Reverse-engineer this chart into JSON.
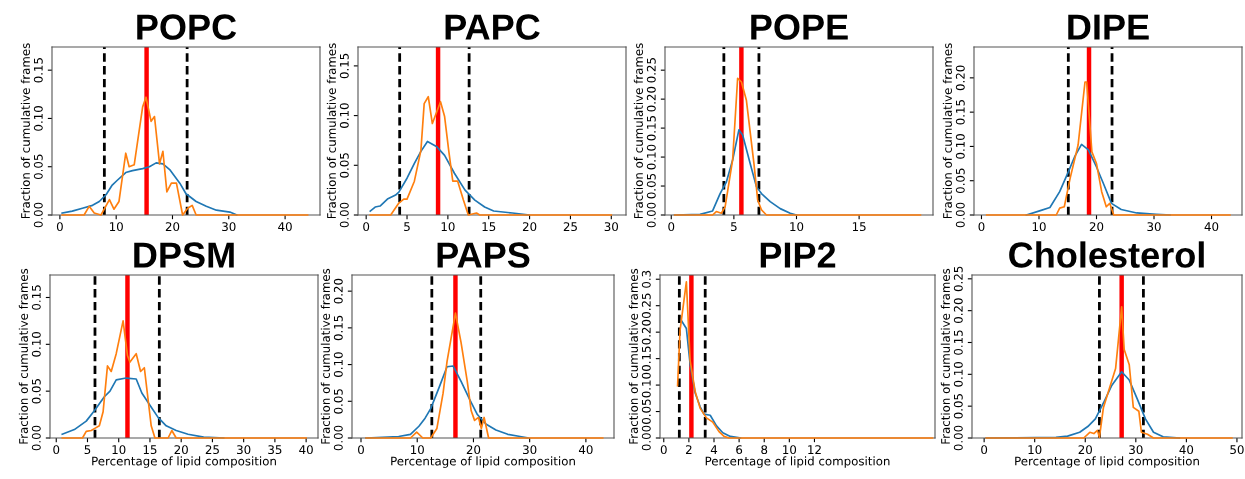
{
  "chart_data": [
    {
      "type": "line",
      "title": "POPC",
      "ylabel": "Fraction of cumulative frames",
      "xlim": [
        -1.4,
        46.2
      ],
      "ylim": [
        0,
        0.174
      ],
      "xticks": [
        0,
        10,
        20,
        30,
        40
      ],
      "yticks": [
        {
          "value": 0,
          "label": "0.00"
        },
        {
          "value": 0.05,
          "label": "0.05"
        },
        {
          "value": 0.1,
          "label": "0.10"
        },
        {
          "value": 0.15,
          "label": "0.15"
        }
      ],
      "series": [
        {
          "color": "#1f77b4",
          "x": [
            0.4,
            2.2,
            4,
            5.8,
            7,
            8.2,
            9.3,
            10.2,
            11.7,
            12.9,
            14.7,
            15.9,
            17.1,
            18.3,
            19.5,
            21.3,
            22.4,
            24.2,
            26,
            27.8,
            30.2,
            31.4
          ],
          "values": [
            0.002,
            0.004,
            0.007,
            0.01,
            0.014,
            0.021,
            0.031,
            0.036,
            0.044,
            0.046,
            0.048,
            0.05,
            0.054,
            0.053,
            0.047,
            0.033,
            0.022,
            0.014,
            0.009,
            0.005,
            0.003,
            0
          ]
        },
        {
          "color": "#ff7f0e",
          "x": [
            0.4,
            4.3,
            5.2,
            6.1,
            7.3,
            8.8,
            9.6,
            10.5,
            11.7,
            12.3,
            13.2,
            14.7,
            15.3,
            16.2,
            16.8,
            17.7,
            18.3,
            19,
            19.8,
            20.7,
            21.8,
            22.7,
            23.5,
            24.2,
            44
          ],
          "values": [
            0,
            0,
            0.009,
            0.002,
            0,
            0.016,
            0.006,
            0.014,
            0.064,
            0.05,
            0.052,
            0.112,
            0.122,
            0.097,
            0.102,
            0.053,
            0.066,
            0.024,
            0.033,
            0.033,
            0,
            0.007,
            0.01,
            0,
            0
          ]
        }
      ],
      "ref_lines": [
        {
          "axis": "x",
          "value": 7.9,
          "color": "#000000",
          "line_style": "dashed"
        },
        {
          "axis": "x",
          "value": 22.6,
          "color": "#000000",
          "line_style": "dashed"
        },
        {
          "axis": "x",
          "value": 15.4,
          "color": "#ff0000",
          "line_style": "solid"
        }
      ]
    },
    {
      "type": "line",
      "title": "PAPC",
      "ylabel": "Fraction of cumulative frames",
      "xlim": [
        -1.0,
        31.8
      ],
      "ylim": [
        0,
        0.169
      ],
      "xticks": [
        0,
        5,
        10,
        15,
        20,
        25,
        30
      ],
      "yticks": [
        {
          "value": 0,
          "label": "0.00"
        },
        {
          "value": 0.05,
          "label": "0.05"
        },
        {
          "value": 0.1,
          "label": "0.10"
        },
        {
          "value": 0.15,
          "label": "0.15"
        }
      ],
      "series": [
        {
          "color": "#1f77b4",
          "x": [
            0.5,
            1.1,
            1.7,
            2.6,
            3.6,
            4,
            5,
            5.9,
            6.7,
            7.5,
            8.6,
            9.6,
            10.8,
            12.1,
            13.3,
            14.5,
            15.6,
            17.9,
            19.9
          ],
          "values": [
            0.004,
            0.008,
            0.009,
            0.016,
            0.02,
            0.023,
            0.037,
            0.052,
            0.064,
            0.074,
            0.069,
            0.06,
            0.042,
            0.025,
            0.015,
            0.008,
            0.004,
            0.002,
            0
          ]
        },
        {
          "color": "#ff7f0e",
          "x": [
            0.5,
            3,
            4,
            4.6,
            5,
            5.9,
            6.7,
            7.1,
            7.6,
            8.1,
            9.1,
            9.6,
            10.1,
            10.6,
            11.2,
            11.9,
            12.5,
            13.5,
            13.9,
            30
          ],
          "values": [
            0,
            0,
            0.012,
            0.016,
            0.016,
            0.034,
            0.065,
            0.112,
            0.119,
            0.092,
            0.114,
            0.099,
            0.065,
            0.034,
            0.034,
            0.015,
            0,
            0.002,
            0,
            0
          ]
        }
      ],
      "ref_lines": [
        {
          "axis": "x",
          "value": 4.1,
          "color": "#000000",
          "line_style": "dashed"
        },
        {
          "axis": "x",
          "value": 12.6,
          "color": "#000000",
          "line_style": "dashed"
        },
        {
          "axis": "x",
          "value": 8.8,
          "color": "#ff0000",
          "line_style": "solid"
        }
      ]
    },
    {
      "type": "line",
      "title": "POPE",
      "ylabel": "Fraction of cumulative frames",
      "xlim": [
        -0.5,
        20.9
      ],
      "ylim": [
        0,
        0.29
      ],
      "xticks": [
        0,
        5,
        10,
        15
      ],
      "yticks": [
        {
          "value": 0,
          "label": "0.00"
        },
        {
          "value": 0.05,
          "label": "0.05"
        },
        {
          "value": 0.1,
          "label": "0.10"
        },
        {
          "value": 0.15,
          "label": "0.15"
        },
        {
          "value": 0.2,
          "label": "0.20"
        },
        {
          "value": 0.25,
          "label": "0.25"
        }
      ],
      "series": [
        {
          "color": "#1f77b4",
          "x": [
            0.27,
            2.3,
            3.3,
            3.9,
            4.4,
            4.9,
            5.4,
            5.7,
            6.3,
            6.8,
            7.2,
            7.9,
            8.7,
            9.5,
            10
          ],
          "values": [
            0,
            0.001,
            0.007,
            0.037,
            0.057,
            0.095,
            0.147,
            0.138,
            0.089,
            0.049,
            0.037,
            0.023,
            0.011,
            0.003,
            0
          ]
        },
        {
          "color": "#ff7f0e",
          "x": [
            0.27,
            3.3,
            3.6,
            4,
            4.3,
            4.9,
            5.3,
            5.6,
            6,
            6.6,
            6.9,
            7.2,
            7.6,
            19.9
          ],
          "values": [
            0,
            0,
            0.006,
            0.003,
            0.014,
            0.095,
            0.236,
            0.23,
            0.198,
            0.089,
            0.026,
            0.009,
            0,
            0
          ]
        }
      ],
      "ref_lines": [
        {
          "axis": "x",
          "value": 4.2,
          "color": "#000000",
          "line_style": "dashed"
        },
        {
          "axis": "x",
          "value": 7.0,
          "color": "#000000",
          "line_style": "dashed"
        },
        {
          "axis": "x",
          "value": 5.6,
          "color": "#ff0000",
          "line_style": "solid"
        }
      ]
    },
    {
      "type": "line",
      "title": "DIPE",
      "ylabel": "Fraction of cumulative frames",
      "xlim": [
        -1.3,
        45.3
      ],
      "ylim": [
        0,
        0.245
      ],
      "xticks": [
        0,
        10,
        20,
        30,
        40
      ],
      "yticks": [
        {
          "value": 0,
          "label": "0.00"
        },
        {
          "value": 0.05,
          "label": "0.05"
        },
        {
          "value": 0.1,
          "label": "0.10"
        },
        {
          "value": 0.15,
          "label": "0.15"
        },
        {
          "value": 0.2,
          "label": "0.20"
        }
      ],
      "series": [
        {
          "color": "#1f77b4",
          "x": [
            7.8,
            10.1,
            11.9,
            13.6,
            15.1,
            16.2,
            17.4,
            18.6,
            20,
            21.2,
            22.6,
            24.3,
            27,
            30.4,
            32.8
          ],
          "values": [
            0,
            0.006,
            0.011,
            0.034,
            0.063,
            0.085,
            0.103,
            0.095,
            0.07,
            0.046,
            0.017,
            0.008,
            0.003,
            0.001,
            0
          ]
        },
        {
          "color": "#ff7f0e",
          "x": [
            0.9,
            13,
            13.6,
            14.4,
            15.4,
            16.8,
            18,
            18.3,
            19.2,
            20,
            20.9,
            21.7,
            22.3,
            23,
            43.2
          ],
          "values": [
            0,
            0,
            0.01,
            0.012,
            0.053,
            0.102,
            0.194,
            0.194,
            0.092,
            0.075,
            0.034,
            0.012,
            0.017,
            0,
            0
          ]
        }
      ],
      "ref_lines": [
        {
          "axis": "x",
          "value": 15.1,
          "color": "#000000",
          "line_style": "dashed"
        },
        {
          "axis": "x",
          "value": 22.7,
          "color": "#000000",
          "line_style": "dashed"
        },
        {
          "axis": "x",
          "value": 18.7,
          "color": "#ff0000",
          "line_style": "solid"
        }
      ]
    },
    {
      "type": "line",
      "title": "DPSM",
      "xlabel": "Percentage of lipid composition",
      "ylabel": "Fraction of cumulative frames",
      "xlim": [
        -1.0,
        41.9
      ],
      "ylim": [
        0,
        0.174
      ],
      "xticks": [
        0,
        5,
        10,
        15,
        20,
        25,
        30,
        35,
        40
      ],
      "yticks": [
        {
          "value": 0,
          "label": "0.00"
        },
        {
          "value": 0.05,
          "label": "0.05"
        },
        {
          "value": 0.1,
          "label": "0.10"
        },
        {
          "value": 0.15,
          "label": "0.15"
        }
      ],
      "series": [
        {
          "color": "#1f77b4",
          "x": [
            0.96,
            2.9,
            4.8,
            6.1,
            7.7,
            8.6,
            9.6,
            11.2,
            12.8,
            13.7,
            15,
            16.3,
            17.6,
            19.2,
            21.1,
            23.6,
            26.8
          ],
          "values": [
            0.004,
            0.009,
            0.018,
            0.029,
            0.044,
            0.05,
            0.062,
            0.064,
            0.063,
            0.048,
            0.035,
            0.022,
            0.013,
            0.008,
            0.004,
            0.001,
            0
          ]
        },
        {
          "color": "#ff7f0e",
          "x": [
            0.96,
            4.2,
            4.8,
            5.6,
            6.1,
            6.9,
            7.5,
            8.2,
            8.8,
            9.6,
            10.7,
            11.4,
            11.8,
            12.8,
            13.5,
            14.1,
            15.2,
            15.8,
            17.9,
            18.5,
            19.2,
            40
          ],
          "values": [
            0,
            0,
            0.007,
            0.008,
            0.01,
            0.013,
            0.028,
            0.077,
            0.071,
            0.09,
            0.125,
            0.088,
            0.081,
            0.09,
            0.071,
            0.075,
            0.013,
            0,
            0,
            0.008,
            0,
            0
          ]
        }
      ],
      "ref_lines": [
        {
          "axis": "x",
          "value": 6.2,
          "color": "#000000",
          "line_style": "dashed"
        },
        {
          "axis": "x",
          "value": 16.5,
          "color": "#000000",
          "line_style": "dashed"
        },
        {
          "axis": "x",
          "value": 11.4,
          "color": "#ff0000",
          "line_style": "solid"
        }
      ]
    },
    {
      "type": "line",
      "title": "PAPS",
      "xlabel": "Percentage of lipid composition",
      "ylabel": "Fraction of cumulative frames",
      "xlim": [
        -1.6,
        45.0
      ],
      "ylim": [
        0,
        0.222
      ],
      "xticks": [
        0,
        10,
        20,
        30,
        40
      ],
      "yticks": [
        {
          "value": 0,
          "label": "0.00"
        },
        {
          "value": 0.05,
          "label": "0.05"
        },
        {
          "value": 0.1,
          "label": "0.10"
        },
        {
          "value": 0.15,
          "label": "0.15"
        },
        {
          "value": 0.2,
          "label": "0.20"
        }
      ],
      "series": [
        {
          "color": "#1f77b4",
          "x": [
            0.9,
            6.7,
            8.8,
            10.3,
            11.4,
            12.4,
            13.9,
            15.3,
            16.4,
            17.8,
            19.3,
            20.7,
            22.2,
            24,
            26.1,
            28.3,
            29.7
          ],
          "values": [
            0,
            0.002,
            0.005,
            0.016,
            0.027,
            0.04,
            0.069,
            0.097,
            0.098,
            0.077,
            0.053,
            0.032,
            0.019,
            0.011,
            0.005,
            0.002,
            0
          ]
        },
        {
          "color": "#ff7f0e",
          "x": [
            0.9,
            8.8,
            9.9,
            11,
            12.4,
            13.5,
            14.6,
            15.3,
            16.8,
            17.8,
            18.9,
            19.6,
            20.2,
            20.9,
            21.4,
            21.9,
            22.7,
            43
          ],
          "values": [
            0,
            0,
            0.008,
            0,
            0,
            0.013,
            0.061,
            0.104,
            0.17,
            0.13,
            0.077,
            0.037,
            0.024,
            0.028,
            0.013,
            0.028,
            0,
            0
          ]
        }
      ],
      "ref_lines": [
        {
          "axis": "x",
          "value": 12.6,
          "color": "#000000",
          "line_style": "dashed"
        },
        {
          "axis": "x",
          "value": 21.3,
          "color": "#000000",
          "line_style": "dashed"
        },
        {
          "axis": "x",
          "value": 16.8,
          "color": "#ff0000",
          "line_style": "solid"
        }
      ]
    },
    {
      "type": "line",
      "title": "PIP2",
      "xlabel": "Percentage of lipid composition",
      "ylabel": "Fraction of cumulative frames",
      "xlim": [
        -0.3,
        21.6
      ],
      "ylim": [
        0,
        0.308
      ],
      "xticks": [
        0,
        2,
        4,
        6,
        8,
        10,
        12
      ],
      "yticks": [
        {
          "value": 0,
          "label": "0.00"
        },
        {
          "value": 0.05,
          "label": "0.05"
        },
        {
          "value": 0.1,
          "label": "0.10"
        },
        {
          "value": 0.15,
          "label": "0.15"
        },
        {
          "value": 0.2,
          "label": "0.20"
        },
        {
          "value": 0.25,
          "label": "0.25"
        },
        0.3
      ],
      "series": [
        {
          "color": "#1f77b4",
          "x": [
            1.4,
            1.8,
            2.1,
            2.5,
            2.9,
            3.2,
            3.7,
            4.2,
            4.7,
            5.3,
            6.1
          ],
          "values": [
            0.222,
            0.207,
            0.139,
            0.085,
            0.059,
            0.045,
            0.043,
            0.023,
            0.01,
            0.003,
            0
          ]
        },
        {
          "color": "#ff7f0e",
          "x": [
            1.1,
            1.3,
            1.8,
            2.1,
            2.5,
            2.9,
            3.4,
            3.9,
            4.4,
            4.8,
            5.2,
            21.4
          ],
          "values": [
            0.099,
            0.204,
            0.295,
            0.146,
            0.088,
            0.056,
            0.038,
            0.03,
            0.012,
            0.003,
            0,
            0
          ]
        }
      ],
      "ref_lines": [
        {
          "axis": "x",
          "value": 1.24,
          "color": "#000000",
          "line_style": "dashed"
        },
        {
          "axis": "x",
          "value": 3.3,
          "color": "#000000",
          "line_style": "dashed"
        },
        {
          "axis": "x",
          "value": 2.2,
          "color": "#ff0000",
          "line_style": "solid"
        }
      ]
    },
    {
      "type": "line",
      "title": "Cholesterol",
      "xlabel": "Percentage of lipid composition",
      "ylabel": "Fraction of cumulative frames",
      "xlim": [
        -2.4,
        51.0
      ],
      "ylim": [
        0,
        0.256
      ],
      "xticks": [
        0,
        10,
        20,
        30,
        40,
        50
      ],
      "yticks": [
        {
          "value": 0,
          "label": "0.00"
        },
        {
          "value": 0.05,
          "label": "0.05"
        },
        {
          "value": 0.1,
          "label": "0.10"
        },
        {
          "value": 0.15,
          "label": "0.15"
        },
        {
          "value": 0.2,
          "label": "0.20"
        },
        {
          "value": 0.25,
          "label": "0.25"
        }
      ],
      "series": [
        {
          "color": "#1f77b4",
          "x": [
            0.4,
            14.2,
            16.5,
            18.9,
            20.5,
            22,
            23.6,
            25.2,
            27.2,
            28.7,
            30.3,
            31.9,
            33.5,
            35.4,
            38.6
          ],
          "values": [
            0,
            0.001,
            0.003,
            0.009,
            0.018,
            0.03,
            0.055,
            0.082,
            0.104,
            0.091,
            0.061,
            0.03,
            0.009,
            0.002,
            0
          ]
        },
        {
          "color": "#ff7f0e",
          "x": [
            0.4,
            19.7,
            20.9,
            21.7,
            22.4,
            22.8,
            23.6,
            26,
            27.2,
            27.7,
            28.7,
            29.5,
            30.6,
            31.1,
            32.3,
            33.5,
            49
          ],
          "values": [
            0,
            0,
            0.009,
            0.007,
            0.012,
            0.001,
            0.048,
            0.109,
            0.206,
            0.139,
            0.115,
            0.048,
            0.042,
            0.009,
            0.006,
            0,
            0
          ]
        }
      ],
      "ref_lines": [
        {
          "axis": "x",
          "value": 22.8,
          "color": "#000000",
          "line_style": "dashed"
        },
        {
          "axis": "x",
          "value": 31.5,
          "color": "#000000",
          "line_style": "dashed"
        },
        {
          "axis": "x",
          "value": 27.2,
          "color": "#ff0000",
          "line_style": "solid"
        }
      ]
    }
  ]
}
